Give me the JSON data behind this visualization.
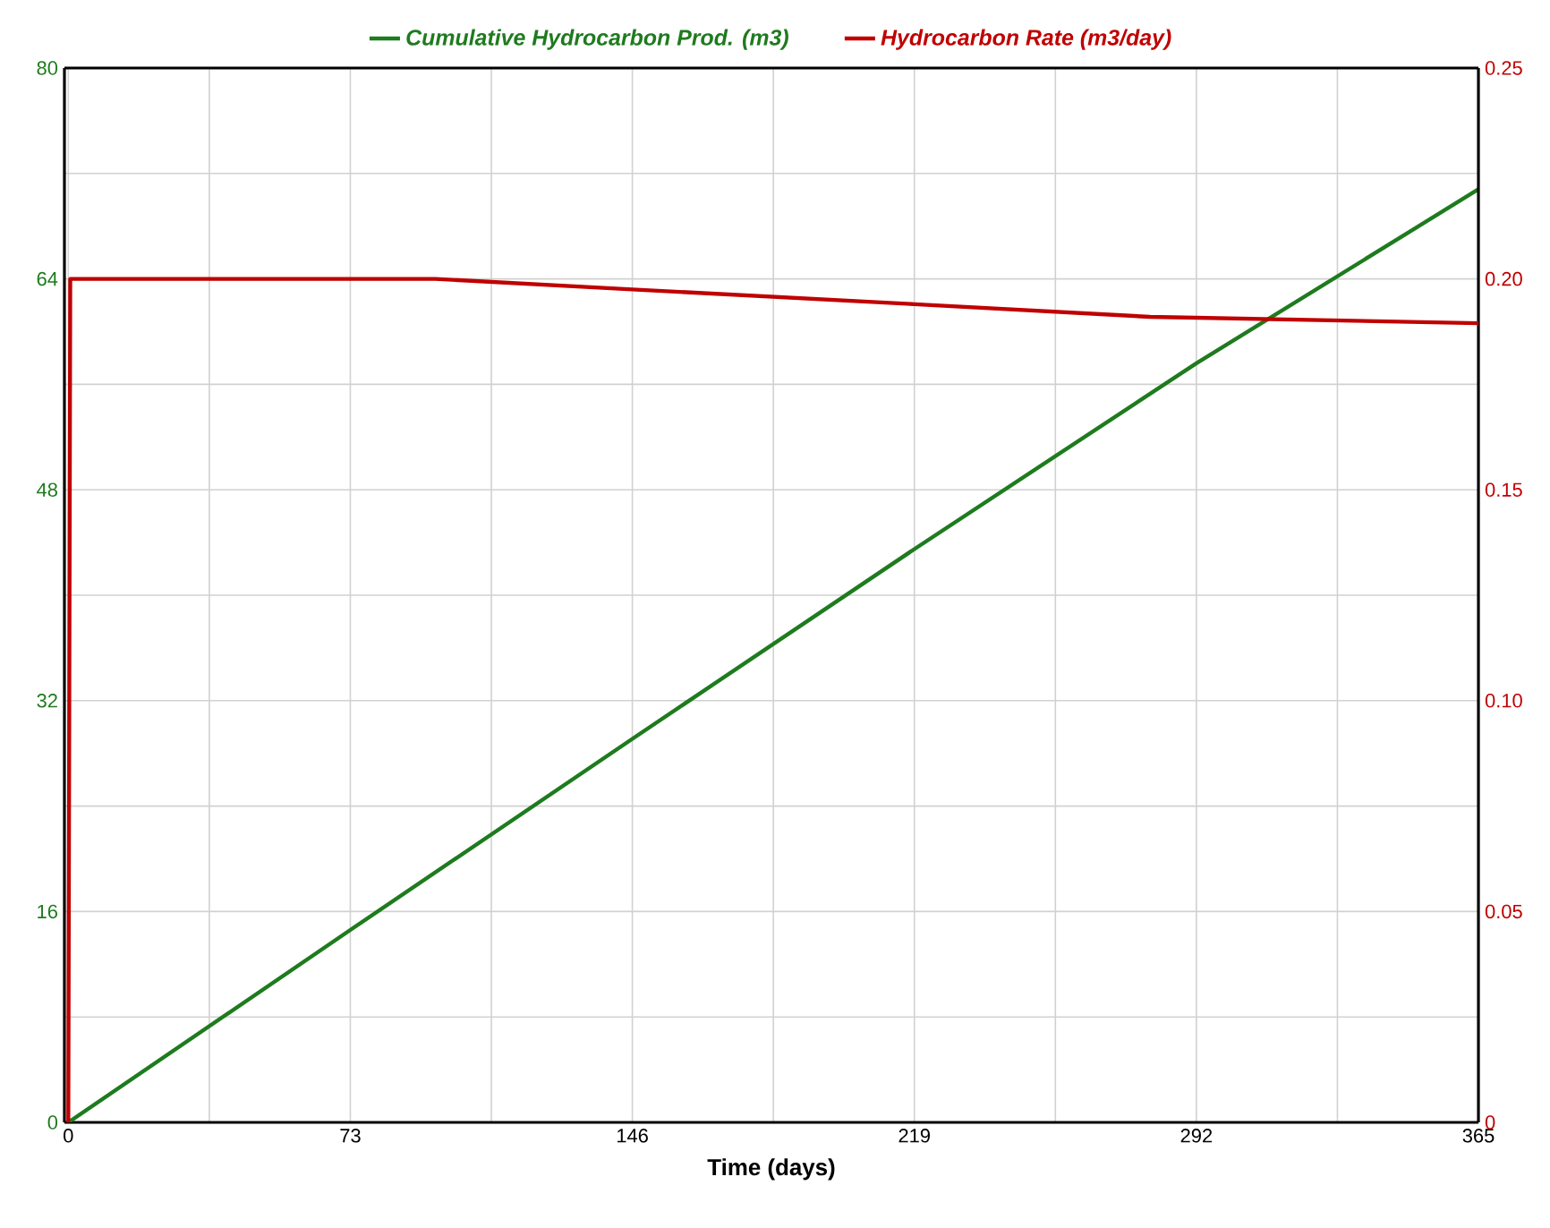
{
  "chart_data": {
    "type": "line",
    "xlabel": "Time (days)",
    "xlim": [
      -1,
      365
    ],
    "xticks": [
      0,
      {
        "value": 36.5,
        "label": null
      },
      73,
      {
        "value": 109.5,
        "label": null
      },
      146,
      {
        "value": 182.5,
        "label": null
      },
      219,
      {
        "value": 255.5,
        "label": null
      },
      292,
      {
        "value": 328.5,
        "label": null
      },
      365
    ],
    "ylim": [
      0,
      80
    ],
    "yticks": [
      0,
      {
        "value": 8,
        "label": null
      },
      16,
      {
        "value": 24,
        "label": null
      },
      32,
      {
        "value": 40,
        "label": null
      },
      48,
      {
        "value": 56,
        "label": null
      },
      64,
      {
        "value": 72,
        "label": null
      },
      80
    ],
    "y2lim": [
      0,
      0.25
    ],
    "y2ticks": [
      0,
      0.05,
      {
        "value": 0.1,
        "label": "0.10"
      },
      0.15,
      {
        "value": 0.2,
        "label": "0.20"
      },
      0.25
    ],
    "grid": true,
    "legend": "top",
    "line_style": "solid",
    "marker": "none",
    "series": [
      {
        "name": "Cumulative Hydrocarbon Prod.  (m3)",
        "color": "#1e7b1e",
        "x": [
          0,
          73,
          146,
          219,
          292,
          365
        ],
        "values": [
          0,
          14.6,
          29.1,
          43.5,
          57.6,
          70.8
        ]
      },
      {
        "name": "Hydrocarbon Rate  (m3/day)",
        "color": "#c00000",
        "axis": "y2",
        "x": [
          0,
          0.5,
          95,
          146,
          219,
          280,
          365
        ],
        "values": [
          0,
          0.2,
          0.2,
          0.1975,
          0.194,
          0.191,
          0.1895
        ]
      }
    ]
  }
}
